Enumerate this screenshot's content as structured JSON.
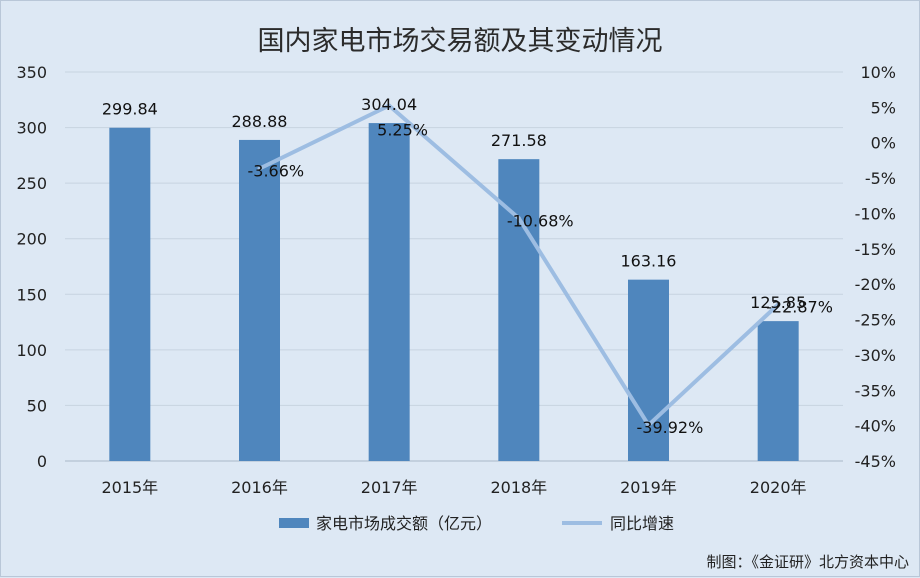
{
  "chart_data": {
    "type": "bar",
    "title": "国内家电市场交易额及其变动情况",
    "categories": [
      "2015年",
      "2016年",
      "2017年",
      "2018年",
      "2019年",
      "2020年"
    ],
    "series": [
      {
        "name": "家电市场成交额（亿元）",
        "type": "bar",
        "axis": "left",
        "values": [
          299.84,
          288.88,
          304.04,
          271.58,
          163.16,
          125.85
        ],
        "labels": [
          "299.84",
          "288.88",
          "304.04",
          "271.58",
          "163.16",
          "125.85"
        ]
      },
      {
        "name": "同比增速",
        "type": "line",
        "axis": "right",
        "values": [
          null,
          -3.66,
          5.25,
          -10.68,
          -39.92,
          -22.87
        ],
        "labels": [
          "",
          "-3.66%",
          "5.25%",
          "-10.68%",
          "-39.92%",
          "-22.87%"
        ]
      }
    ],
    "left_axis": {
      "min": 0,
      "max": 350,
      "ticks": [
        "0",
        "50",
        "100",
        "150",
        "200",
        "250",
        "300",
        "350"
      ]
    },
    "right_axis": {
      "min": -45,
      "max": 10,
      "ticks": [
        "10%",
        "5%",
        "0%",
        "-5%",
        "-10%",
        "-15%",
        "-20%",
        "-25%",
        "-30%",
        "-35%",
        "-40%",
        "-45%"
      ]
    },
    "grid": true,
    "legend": "bottom",
    "colors": {
      "bar": "#4f86bd",
      "line": "#9dbde2",
      "background": "#dde8f4",
      "grid": "#c7d3e0"
    },
    "source": "制图：《金证研》北方资本中心"
  }
}
